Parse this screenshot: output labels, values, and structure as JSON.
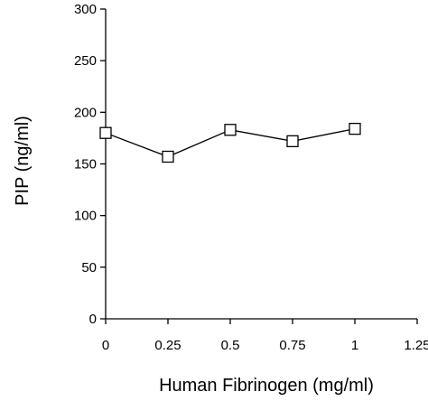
{
  "chart_data": {
    "type": "line",
    "title": "",
    "xlabel": "Human Fibrinogen (mg/ml)",
    "ylabel": "PIP (ng/ml)",
    "xlim": [
      0,
      1.25
    ],
    "ylim": [
      0,
      300
    ],
    "xticks": [
      "0",
      "0.25",
      "0.5",
      "0.75",
      "1",
      "1.25"
    ],
    "yticks": [
      "0",
      "50",
      "100",
      "150",
      "200",
      "250",
      "300"
    ],
    "grid": false,
    "legend": "none",
    "series": [
      {
        "marker": "open-square",
        "color": "#000000",
        "x": [
          0,
          0.25,
          0.5,
          0.75,
          1
        ],
        "y": [
          180,
          157,
          183,
          172,
          184
        ]
      }
    ]
  }
}
